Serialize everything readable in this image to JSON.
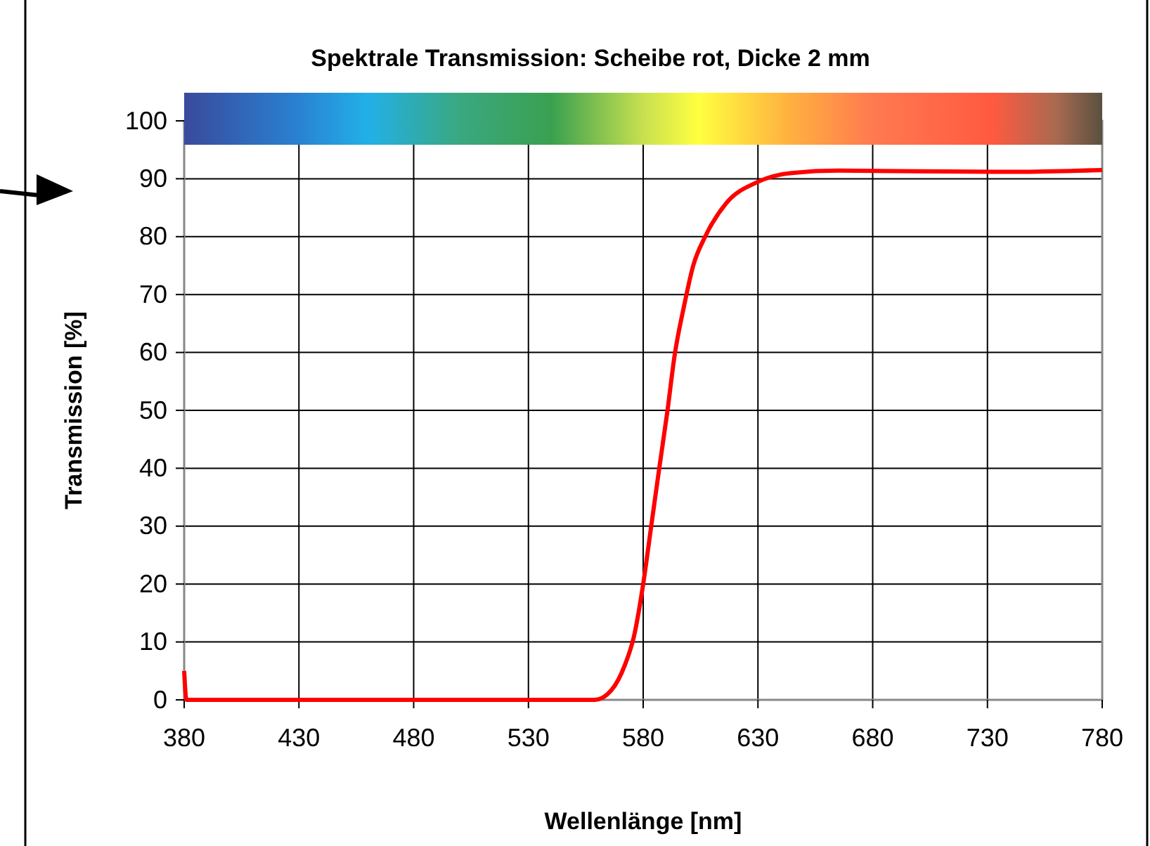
{
  "chart_data": {
    "type": "line",
    "title": "Spektrale Transmission: Scheibe rot, Dicke 2 mm",
    "xlabel": "Wellenlänge [nm]",
    "ylabel": "Transmission [%]",
    "x": [
      380,
      381,
      450,
      520,
      559,
      566,
      572,
      576,
      580,
      583.5,
      587,
      590.6,
      593.7,
      597.8,
      601.8,
      607,
      616,
      629.6,
      644.7,
      665,
      700,
      740,
      780
    ],
    "series": [
      {
        "color": "#ff0000",
        "values": [
          5,
          0,
          0,
          0,
          0,
          1.6,
          6,
          11,
          20,
          30,
          40,
          50,
          59.5,
          68,
          75,
          80,
          85.7,
          89.4,
          91,
          91.4,
          91.3,
          91.2,
          91.5
        ]
      }
    ],
    "xlim": [
      380,
      780
    ],
    "xticks": [
      380,
      430,
      480,
      530,
      580,
      630,
      680,
      730,
      780
    ],
    "ylim": [
      0,
      100
    ],
    "yticks": [
      0,
      10,
      20,
      30,
      40,
      50,
      60,
      70,
      80,
      90,
      100
    ],
    "grid": true,
    "marker": "none",
    "line_style": "solid"
  }
}
